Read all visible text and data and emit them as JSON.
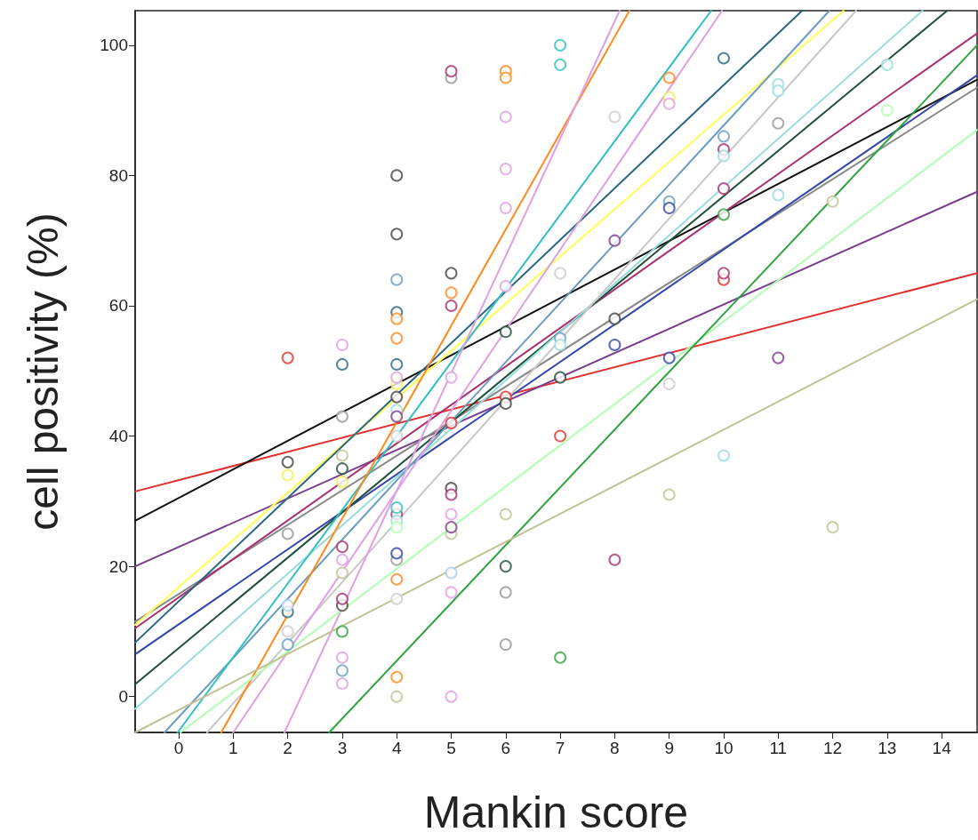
{
  "chart_data": {
    "type": "scatter",
    "xlabel": "Mankin score",
    "ylabel": "cell positivity (%)",
    "xlim": [
      -0.8,
      14.65
    ],
    "xticks": [
      0,
      1,
      2,
      3,
      4,
      5,
      6,
      7,
      8,
      9,
      10,
      11,
      12,
      13,
      14
    ],
    "ylim": [
      -5.5,
      105.3
    ],
    "yticks": [
      0,
      20,
      40,
      60,
      80,
      100
    ],
    "grid": false,
    "series": [
      {
        "marker": "circle",
        "color": "#e03030",
        "x": [
          2,
          5,
          6,
          7,
          10
        ],
        "values": [
          52,
          42,
          46,
          40,
          64
        ]
      },
      {
        "marker": "circle",
        "color": "#444444",
        "x": [
          2,
          4,
          4,
          4,
          5,
          5,
          6,
          8,
          3
        ],
        "values": [
          36,
          80,
          71,
          46,
          65,
          32,
          45,
          58,
          14
        ]
      },
      {
        "marker": "circle",
        "color": "#999999",
        "x": [
          2,
          3,
          4,
          5,
          6,
          6,
          11
        ],
        "values": [
          25,
          43,
          21,
          95,
          16,
          8,
          88
        ]
      },
      {
        "marker": "circle",
        "color": "#2b6680",
        "x": [
          2,
          3,
          4,
          4,
          10
        ],
        "values": [
          13,
          51,
          59,
          51,
          98
        ]
      },
      {
        "marker": "circle",
        "color": "#1f4f3a",
        "x": [
          3,
          6,
          6,
          7
        ],
        "values": [
          35,
          56,
          20,
          49
        ]
      },
      {
        "marker": "circle",
        "color": "#f0f050",
        "x": [
          2,
          3,
          4,
          9
        ],
        "values": [
          34,
          33,
          48,
          92
        ]
      },
      {
        "marker": "circle",
        "color": "#cccccc",
        "x": [
          2,
          4,
          4,
          7,
          8,
          9
        ],
        "values": [
          10,
          40,
          15,
          65,
          89,
          48
        ]
      },
      {
        "marker": "circle",
        "color": "#6b9cbf",
        "x": [
          2,
          3,
          4,
          7,
          9,
          10
        ],
        "values": [
          8,
          4,
          64,
          55,
          76,
          86
        ]
      },
      {
        "marker": "circle",
        "color": "#a8d0e8",
        "x": [
          2,
          5
        ],
        "values": [
          14,
          19
        ]
      },
      {
        "marker": "circle",
        "color": "#dda0e0",
        "x": [
          3,
          3,
          3,
          3,
          4,
          5,
          5,
          5,
          5,
          6,
          6,
          6,
          6,
          9
        ],
        "values": [
          54,
          21,
          6,
          2,
          49,
          49,
          28,
          16,
          0,
          89,
          81,
          75,
          63,
          91
        ]
      },
      {
        "marker": "circle",
        "color": "#c2c296",
        "x": [
          3,
          3,
          4,
          5,
          6,
          9,
          12,
          12
        ],
        "values": [
          37,
          19,
          0,
          25,
          28,
          31,
          76,
          26
        ]
      },
      {
        "marker": "circle",
        "color": "#a8326e",
        "x": [
          3,
          3,
          4,
          5,
          5,
          5,
          8,
          10,
          10,
          10
        ],
        "values": [
          23,
          15,
          28,
          96,
          60,
          31,
          21,
          84,
          78,
          65
        ]
      },
      {
        "marker": "circle",
        "color": "#2fa33f",
        "x": [
          3,
          7,
          10
        ],
        "values": [
          10,
          6,
          74
        ]
      },
      {
        "marker": "circle",
        "color": "#ff8a1e",
        "x": [
          4,
          4,
          4,
          4,
          5,
          6,
          6,
          9
        ],
        "values": [
          58,
          55,
          18,
          3,
          62,
          96,
          95,
          95
        ]
      },
      {
        "marker": "circle",
        "color": "#99dcdc",
        "x": [
          4,
          4,
          7,
          10,
          10,
          11,
          11,
          11,
          13
        ],
        "values": [
          44,
          27,
          54,
          83,
          37,
          94,
          93,
          77,
          97
        ]
      },
      {
        "marker": "circle",
        "color": "#7b3f8f",
        "x": [
          4,
          5,
          8,
          11
        ],
        "values": [
          43,
          26,
          70,
          52
        ]
      },
      {
        "marker": "circle",
        "color": "#33bfbf",
        "x": [
          4,
          7,
          7
        ],
        "values": [
          29,
          100,
          97
        ]
      },
      {
        "marker": "circle",
        "color": "#b0ffb0",
        "x": [
          4,
          13
        ],
        "values": [
          26,
          90
        ]
      },
      {
        "marker": "circle",
        "color": "#3344aa",
        "x": [
          4,
          8,
          9,
          9
        ],
        "values": [
          22,
          54,
          75,
          52
        ]
      },
      {
        "type": "line",
        "marker": "none",
        "color": "#e03030",
        "x": [
          -0.8,
          14.65
        ],
        "values": [
          31.5,
          65
        ]
      },
      {
        "type": "line",
        "marker": "none",
        "color": "#111111",
        "x": [
          -0.8,
          14.65
        ],
        "values": [
          27,
          94.7
        ]
      },
      {
        "type": "line",
        "marker": "none",
        "color": "#7b3f8f",
        "x": [
          -0.8,
          14.65
        ],
        "values": [
          20,
          77.5
        ]
      },
      {
        "type": "line",
        "marker": "none",
        "color": "#888888",
        "x": [
          -0.8,
          14.65
        ],
        "values": [
          11.5,
          93.5
        ]
      },
      {
        "type": "line",
        "marker": "none",
        "color": "#3344aa",
        "x": [
          -0.8,
          14.65
        ],
        "values": [
          6.5,
          95.4
        ]
      },
      {
        "type": "line",
        "marker": "none",
        "color": "#a8326e",
        "x": [
          -0.8,
          14.65
        ],
        "values": [
          10.5,
          101.8
        ]
      },
      {
        "type": "line",
        "marker": "none",
        "color": "#ffff55",
        "x": [
          -0.8,
          12.2
        ],
        "values": [
          11,
          105.3
        ]
      },
      {
        "type": "line",
        "marker": "none",
        "color": "#2b6680",
        "x": [
          -0.8,
          11.44
        ],
        "values": [
          8.3,
          105.3
        ]
      },
      {
        "type": "line",
        "marker": "none",
        "color": "#1f4f3a",
        "x": [
          -0.8,
          14.1
        ],
        "values": [
          1.9,
          105.3
        ]
      },
      {
        "type": "line",
        "marker": "none",
        "color": "#99dcdc",
        "x": [
          -0.8,
          13.65
        ],
        "values": [
          -1.9,
          105.3
        ]
      },
      {
        "type": "line",
        "marker": "none",
        "color": "#6b9cbf",
        "x": [
          -0.26,
          11.94
        ],
        "values": [
          -5.5,
          105.3
        ]
      },
      {
        "type": "line",
        "marker": "none",
        "color": "#c8c8c8",
        "x": [
          0.52,
          12.43
        ],
        "values": [
          -5.5,
          105.3
        ]
      },
      {
        "type": "line",
        "marker": "none",
        "color": "#33bfbf",
        "x": [
          -0.02,
          9.77
        ],
        "values": [
          -5.5,
          105.3
        ]
      },
      {
        "type": "line",
        "marker": "none",
        "color": "#ff8a1e",
        "x": [
          0.78,
          8.27
        ],
        "values": [
          -5.5,
          105.3
        ]
      },
      {
        "type": "line",
        "marker": "none",
        "color": "#dda0e0",
        "x": [
          1.0,
          9.97
        ],
        "values": [
          -5.5,
          105.3
        ]
      },
      {
        "type": "line",
        "marker": "none",
        "color": "#dda0e0",
        "x": [
          1.94,
          8.09
        ],
        "values": [
          -5.5,
          105.3
        ]
      },
      {
        "type": "line",
        "marker": "none",
        "color": "#b0ffb0",
        "x": [
          0.03,
          14.65
        ],
        "values": [
          -5.5,
          87
        ]
      },
      {
        "type": "line",
        "marker": "none",
        "color": "#2fa33f",
        "x": [
          2.76,
          14.65
        ],
        "values": [
          -5.5,
          100
        ]
      },
      {
        "type": "line",
        "marker": "none",
        "color": "#c2c296",
        "x": [
          -0.8,
          14.65
        ],
        "values": [
          -5.5,
          61
        ]
      }
    ]
  }
}
